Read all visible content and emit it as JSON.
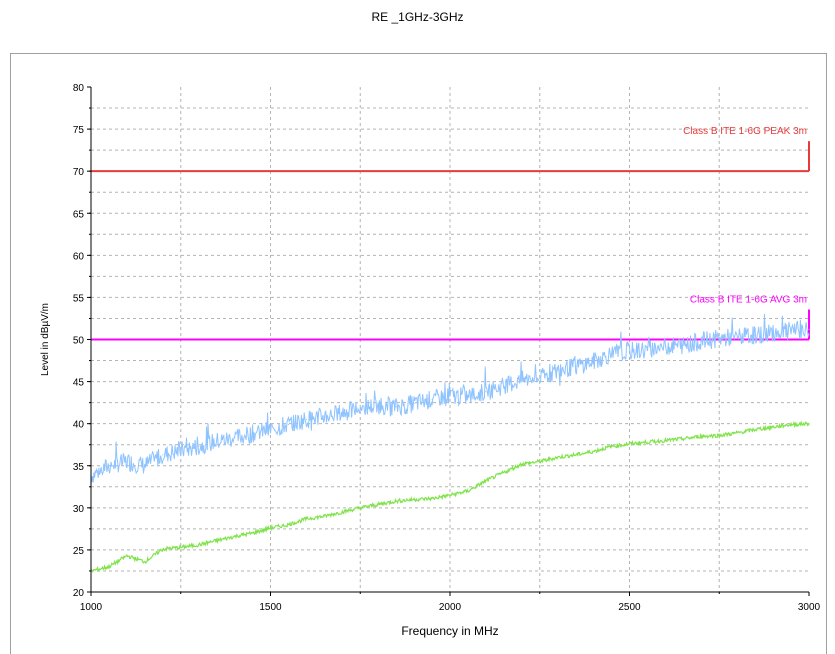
{
  "title": "RE _1GHz-3GHz",
  "chart_data": {
    "type": "line",
    "title": "RE _1GHz-3GHz",
    "xlabel": "Frequency in MHz",
    "ylabel": "Level in dBµV/m",
    "xlim": [
      1000,
      3000
    ],
    "ylim": [
      20,
      80
    ],
    "xticks": [
      1000,
      1500,
      2000,
      2500,
      3000
    ],
    "yticks": [
      20,
      25,
      30,
      35,
      40,
      45,
      50,
      55,
      60,
      65,
      70,
      75,
      80
    ],
    "grid": true,
    "limit_lines": [
      {
        "name": "Class B ITE 1-6G PEAK 3m",
        "value": 70,
        "color": "#e83a3a"
      },
      {
        "name": "Class B ITE 1-6G AVG 3m",
        "value": 50,
        "color": "#ff00ff"
      }
    ],
    "series": [
      {
        "color": "#8fc3ff",
        "x": [
          1000,
          1050,
          1100,
          1150,
          1200,
          1250,
          1300,
          1350,
          1400,
          1450,
          1500,
          1550,
          1600,
          1650,
          1700,
          1750,
          1800,
          1850,
          1900,
          1950,
          2000,
          2050,
          2100,
          2150,
          2200,
          2250,
          2300,
          2350,
          2400,
          2450,
          2500,
          2550,
          2600,
          2650,
          2700,
          2750,
          2800,
          2850,
          2900,
          2950,
          3000
        ],
        "y": [
          33.8,
          35.0,
          35.5,
          35.0,
          36.3,
          36.8,
          37.3,
          37.9,
          38.3,
          38.8,
          39.3,
          39.9,
          40.5,
          40.9,
          41.3,
          41.8,
          42.2,
          42.0,
          42.4,
          42.9,
          43.3,
          43.2,
          43.8,
          44.5,
          45.2,
          45.4,
          46.3,
          46.8,
          47.4,
          48.3,
          48.6,
          48.8,
          49.2,
          49.3,
          49.8,
          50.1,
          50.3,
          50.5,
          50.8,
          51.0,
          51.2
        ]
      },
      {
        "color": "#7fe34a",
        "x": [
          1000,
          1050,
          1100,
          1150,
          1200,
          1250,
          1300,
          1350,
          1400,
          1450,
          1500,
          1550,
          1600,
          1650,
          1700,
          1750,
          1800,
          1850,
          1900,
          1950,
          2000,
          2050,
          2100,
          2150,
          2200,
          2250,
          2300,
          2350,
          2400,
          2450,
          2500,
          2550,
          2600,
          2650,
          2700,
          2750,
          2800,
          2850,
          2900,
          2950,
          3000
        ],
        "y": [
          22.5,
          23.0,
          24.3,
          23.6,
          25.1,
          25.3,
          25.6,
          26.1,
          26.6,
          27.0,
          27.6,
          28.0,
          28.7,
          29.0,
          29.5,
          30.0,
          30.4,
          30.8,
          31.0,
          31.1,
          31.5,
          32.0,
          33.2,
          34.2,
          35.2,
          35.5,
          36.0,
          36.3,
          36.7,
          37.3,
          37.6,
          37.8,
          38.0,
          38.2,
          38.5,
          38.6,
          38.9,
          39.3,
          39.6,
          39.9,
          40.0
        ]
      }
    ]
  }
}
